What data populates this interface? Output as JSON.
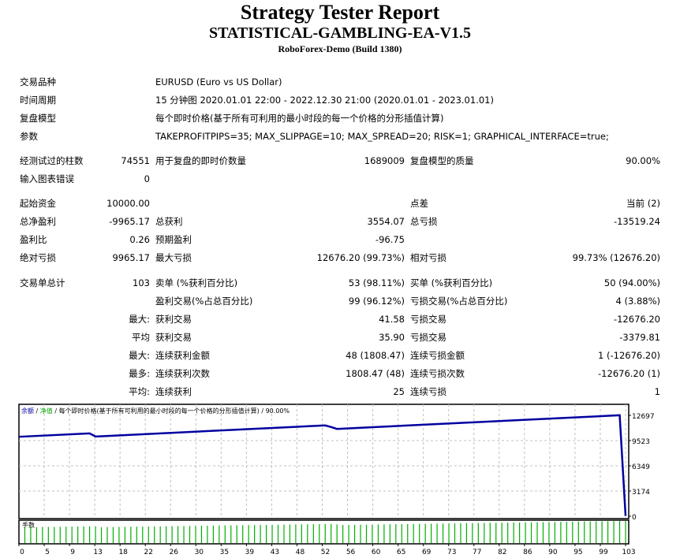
{
  "header": {
    "title": "Strategy Tester Report",
    "expert": "STATISTICAL-GAMBLING-EA-V1.5",
    "server": "RoboForex-Demo (Build 1380)"
  },
  "info_rows": [
    {
      "label": "交易品种",
      "value": "EURUSD (Euro vs US Dollar)"
    },
    {
      "label": "时间周期",
      "value": "15 分钟图 2020.01.01 22:00 - 2022.12.30 21:00 (2020.01.01 - 2023.01.01)"
    },
    {
      "label": "复盘模型",
      "value": "每个即时价格(基于所有可利用的最小时段的每一个价格的分形插值计算)"
    },
    {
      "label": "参数",
      "value": "TAKEPROFITPIPS=35; MAX_SLIPPAGE=10; MAX_SPREAD=20; RISK=1; GRAPHICAL_INTERFACE=true;"
    }
  ],
  "stat_rows": [
    {
      "l1": "经测试过的柱数",
      "v1": "74551",
      "l2": "用于复盘的即时价数量",
      "v2": "1689009",
      "l3": "复盘模型的质量",
      "v3": "90.00%"
    },
    {
      "l1": "输入图表错误",
      "v1": "0"
    },
    {
      "l1": "起始资金",
      "v1": "10000.00",
      "l3": "点差",
      "v3": "当前 (2)"
    },
    {
      "l1": "总净盈利",
      "v1": "-9965.17",
      "l2": "总获利",
      "v2": "3554.07",
      "l3": "总亏损",
      "v3": "-13519.24"
    },
    {
      "l1": "盈利比",
      "v1": "0.26",
      "l2": "预期盈利",
      "v2": "-96.75"
    },
    {
      "l1": "绝对亏损",
      "v1": "9965.17",
      "l2": "最大亏损",
      "v2": "12676.20 (99.73%)",
      "l3": "相对亏损",
      "v3": "99.73% (12676.20)"
    },
    {
      "l1": "交易单总计",
      "v1": "103",
      "l2": "卖单 (%获利百分比)",
      "v2": "53 (98.11%)",
      "l3": "买单 (%获利百分比)",
      "v3": "50 (94.00%)"
    },
    {
      "l2": "盈利交易(%占总百分比)",
      "v2": "99 (96.12%)",
      "l3": "亏损交易(%占总百分比)",
      "v3": "4 (3.88%)"
    },
    {
      "prefix": "最大:",
      "l2": "获利交易",
      "v2": "41.58",
      "l3": "亏损交易",
      "v3": "-12676.20"
    },
    {
      "prefix": "平均",
      "l2": "获利交易",
      "v2": "35.90",
      "l3": "亏损交易",
      "v3": "-3379.81"
    },
    {
      "prefix": "最大:",
      "l2": "连续获利金额",
      "v2": "48 (1808.47)",
      "l3": "连续亏损金额",
      "v3": "1 (-12676.20)"
    },
    {
      "prefix": "最多:",
      "l2": "连续获利次数",
      "v2": "1808.47 (48)",
      "l3": "连续亏损次数",
      "v3": "-12676.20 (1)"
    },
    {
      "prefix": "平均:",
      "l2": "连续获利",
      "v2": "25",
      "l3": "连续亏损",
      "v3": "1"
    }
  ],
  "chart_data": {
    "type": "line",
    "legend": {
      "balance": "余额",
      "sep1": " / ",
      "equity": "净值",
      "sep2": " / ",
      "model": "每个即时价格(基于所有可利用的最小时段的每一个价格的分形插值计算)",
      "sep3": " / ",
      "quality": "90.00%"
    },
    "volume_label": "手数",
    "xlim": [
      0,
      103
    ],
    "ylim": [
      0,
      12697
    ],
    "y_ticks": [
      12697,
      9523,
      6349,
      3174,
      0
    ],
    "x_tick_labels": [
      "0",
      "5",
      "9",
      "13",
      "18",
      "22",
      "26",
      "30",
      "35",
      "39",
      "43",
      "48",
      "52",
      "56",
      "60",
      "65",
      "69",
      "73",
      "77",
      "82",
      "86",
      "90",
      "95",
      "99",
      "103"
    ],
    "grid": true,
    "colors": {
      "balance": "#0000a0",
      "equity": "#00a000",
      "volume": "#00b000",
      "grid": "#c0c0c0"
    },
    "series": [
      {
        "name": "余额",
        "points": [
          [
            0,
            10000
          ],
          [
            12,
            10431
          ],
          [
            13,
            10031
          ],
          [
            52,
            11431
          ],
          [
            53,
            11231
          ],
          [
            54,
            10988
          ],
          [
            102,
            12711
          ],
          [
            103,
            35
          ]
        ]
      }
    ]
  }
}
